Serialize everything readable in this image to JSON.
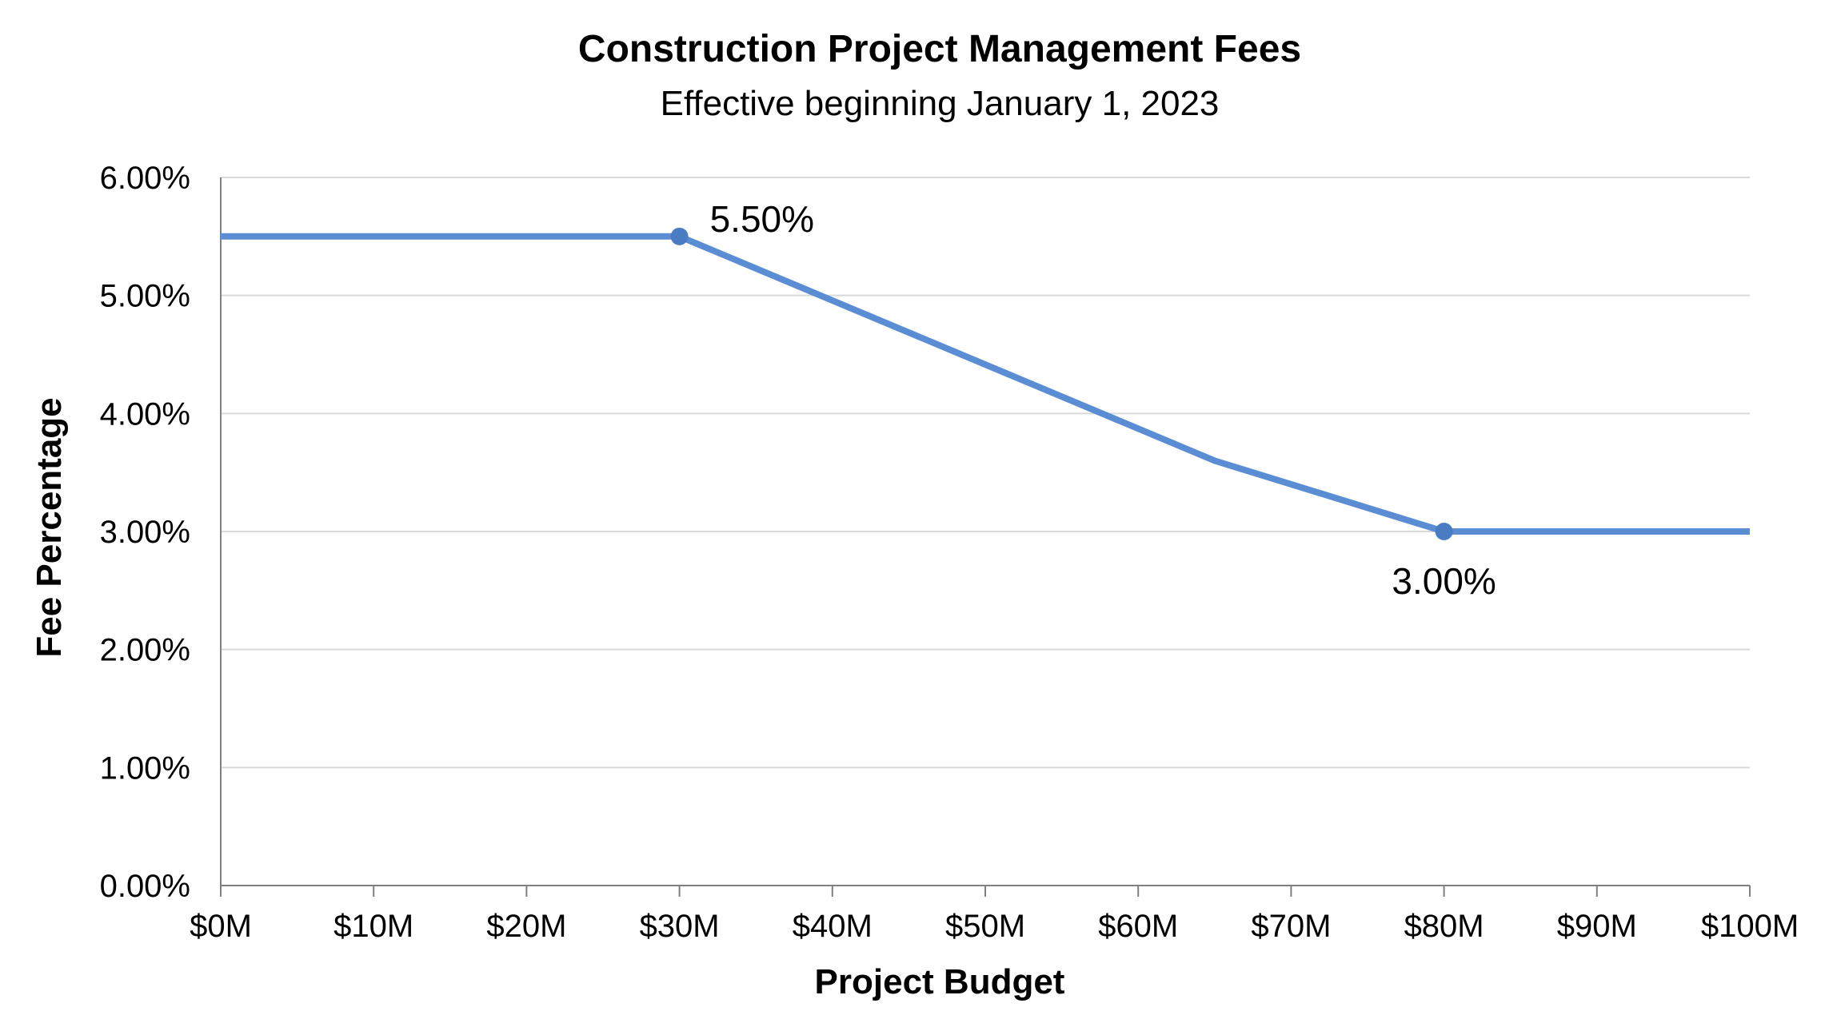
{
  "chart_data": {
    "type": "line",
    "title": "Construction Project Management Fees",
    "subtitle": "Effective beginning January 1, 2023",
    "xlabel": "Project Budget",
    "ylabel": "Fee Percentage",
    "xlim": [
      0,
      100
    ],
    "ylim": [
      0,
      6
    ],
    "x_ticks": [
      0,
      10,
      20,
      30,
      40,
      50,
      60,
      70,
      80,
      90,
      100
    ],
    "x_tick_labels": [
      "$0M",
      "$10M",
      "$20M",
      "$30M",
      "$40M",
      "$50M",
      "$60M",
      "$70M",
      "$80M",
      "$90M",
      "$100M"
    ],
    "y_ticks": [
      0,
      1,
      2,
      3,
      4,
      5,
      6
    ],
    "y_tick_labels": [
      "0.00%",
      "1.00%",
      "2.00%",
      "3.00%",
      "4.00%",
      "5.00%",
      "6.00%"
    ],
    "grid": "horizontal",
    "legend": "none",
    "series": [
      {
        "color": "#5b8dd4",
        "points": [
          {
            "x": 0,
            "y": 5.5
          },
          {
            "x": 30,
            "y": 5.5
          },
          {
            "x": 65,
            "y": 3.6
          },
          {
            "x": 80,
            "y": 3.0
          },
          {
            "x": 100,
            "y": 3.0
          }
        ]
      }
    ],
    "markers": [
      {
        "x": 30,
        "y": 5.5,
        "label": "5.50%",
        "label_position": "above-right"
      },
      {
        "x": 80,
        "y": 3.0,
        "label": "3.00%",
        "label_position": "below"
      }
    ],
    "colors": {
      "line": "#5b8dd4",
      "marker": "#4a7cc4",
      "grid": "#d9d9d9",
      "axis": "#808080"
    }
  }
}
